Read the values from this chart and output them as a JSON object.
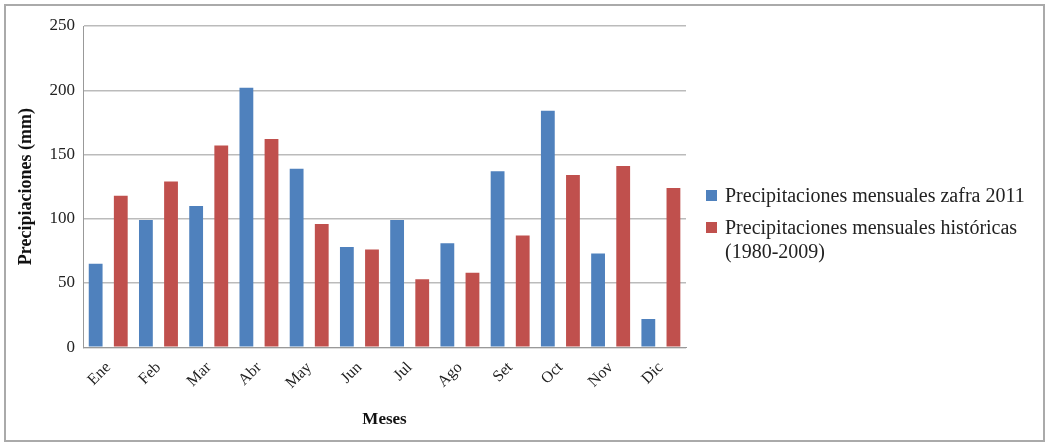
{
  "chart_data": {
    "type": "bar",
    "xlabel": "Meses",
    "ylabel": "Precipiaciones (mm)",
    "categories": [
      "Ene",
      "Feb",
      "Mar",
      "Abr",
      "May",
      "Jun",
      "Jul",
      "Ago",
      "Set",
      "Oct",
      "Nov",
      "Dic"
    ],
    "series": [
      {
        "name": "Precipitaciones mensuales zafra 2011",
        "color": "#4f81bd",
        "values": [
          65,
          99,
          110,
          202,
          139,
          78,
          99,
          81,
          137,
          184,
          73,
          22
        ]
      },
      {
        "name": "Precipitaciones mensuales históricas (1980-2009)",
        "color": "#c0504d",
        "values": [
          118,
          129,
          157,
          162,
          96,
          76,
          53,
          58,
          87,
          134,
          141,
          124
        ]
      }
    ],
    "ylim": [
      0,
      250
    ],
    "yticks": [
      0,
      50,
      100,
      150,
      200,
      250
    ],
    "grid": "y",
    "legend": "right"
  }
}
